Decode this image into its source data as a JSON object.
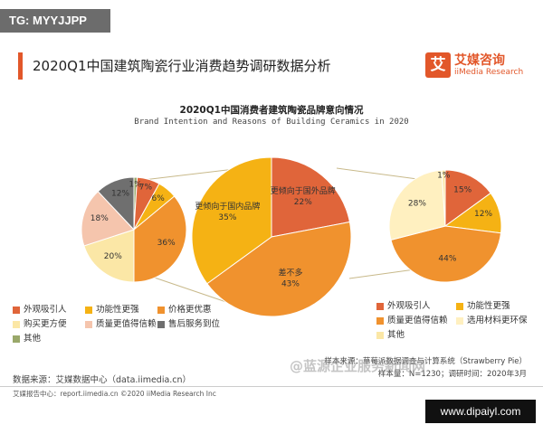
{
  "tag": "TG: MYYJJPP",
  "header": {
    "title": "2020Q1中国建筑陶瓷行业消费趋势调研数据分析"
  },
  "brand": {
    "logo_char": "艾",
    "name_cn": "艾媒咨询",
    "name_en": "iiMedia Research"
  },
  "colors": {
    "accent": "#e2572a",
    "appearance": "#e0653a",
    "function": "#f5b214",
    "price": "#f0922e",
    "convenient": "#fbe7a6",
    "quality": "#f5c5ad",
    "service": "#6f6f6f",
    "other": "#9aa86a",
    "material": "#fff0c0"
  },
  "legend_left": [
    {
      "label": "外观吸引人",
      "color": "#e0653a"
    },
    {
      "label": "功能性更强",
      "color": "#f5b214"
    },
    {
      "label": "价格更优惠",
      "color": "#f0922e"
    },
    {
      "label": "购买更方便",
      "color": "#fbe7a6"
    },
    {
      "label": "质量更值得信赖",
      "color": "#f5c5ad"
    },
    {
      "label": "售后服务到位",
      "color": "#6f6f6f"
    },
    {
      "label": "其他",
      "color": "#9aa86a"
    }
  ],
  "legend_right": [
    {
      "label": "外观吸引人",
      "color": "#e0653a"
    },
    {
      "label": "功能性更强",
      "color": "#f5b214"
    },
    {
      "label": "质量更值得信赖",
      "color": "#f0922e"
    },
    {
      "label": "选用材料更环保",
      "color": "#fff0c0"
    },
    {
      "label": "其他",
      "color": "#fbe7a6"
    }
  ],
  "source": {
    "left": "数据来源：艾媒数据中心（data.iimedia.cn）",
    "sample_source": "样本来源：草莓派数据调查与计算系统（Strawberry Pie）",
    "sample_size": "样本量：N=1230；调研时间：2020年3月"
  },
  "footer": "艾媒报告中心：report.iimedia.cn ©2020 iiMedia Research Inc",
  "watermark": "@蓝源企业服务新闻网",
  "site": "www.dipaiyl.com",
  "chart_data": [
    {
      "type": "pie",
      "title": "2020Q1中国消费者建筑陶瓷品牌意向情况",
      "subtitle": "Brand Intention and Reasons of Building Ceramics in 2020",
      "categories": [
        "更倾向于国外品牌",
        "差不多",
        "更倾向于国内品牌"
      ],
      "values": [
        22,
        43,
        35
      ],
      "labels": [
        "更倾向于国外品牌，22%",
        "差不多，43%",
        "更倾向于国内品牌，35%"
      ],
      "colors": [
        "#e0653a",
        "#f0922e",
        "#f5b214"
      ]
    },
    {
      "type": "pie",
      "categories": [
        "其他",
        "外观吸引人",
        "功能性更强",
        "价格更优惠",
        "购买更方便",
        "质量更值得信赖",
        "售后服务到位"
      ],
      "values": [
        1,
        7,
        6,
        36,
        20,
        18,
        12
      ],
      "labels": [
        "1%",
        "7%",
        "6%",
        "36%",
        "20%",
        "18%",
        "12%"
      ],
      "colors": [
        "#9aa86a",
        "#e0653a",
        "#f5b214",
        "#f0922e",
        "#fbe7a6",
        "#f5c5ad",
        "#6f6f6f"
      ]
    },
    {
      "type": "pie",
      "categories": [
        "外观吸引人",
        "功能性更强",
        "质量更值得信赖",
        "选用材料更环保",
        "其他"
      ],
      "values": [
        15,
        12,
        44,
        28,
        1
      ],
      "labels": [
        "15%",
        "12%",
        "44%",
        "28%",
        "1%"
      ],
      "colors": [
        "#e0653a",
        "#f5b214",
        "#f0922e",
        "#fff0c0",
        "#fbe7a6"
      ]
    }
  ]
}
